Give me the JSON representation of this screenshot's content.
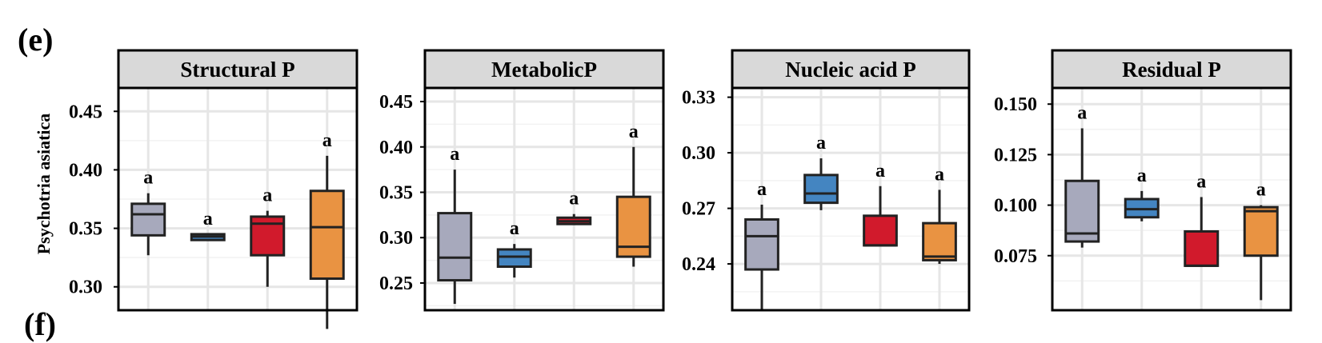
{
  "labels": {
    "top": "(e)",
    "bottom": "(f)"
  },
  "ylabel": "Psychotria asiatica",
  "colors": [
    "#A7A9BC",
    "#4485C1",
    "#D11A2C",
    "#E99342"
  ],
  "chart_data": [
    {
      "type": "box",
      "title": "Structural P",
      "ylim": [
        0.28,
        0.47
      ],
      "yticks": [
        "0.30",
        "0.35",
        "0.40",
        "0.45"
      ],
      "tick_values": [
        0.3,
        0.35,
        0.4,
        0.45
      ],
      "boxes": [
        {
          "whisker_low": 0.327,
          "q1": 0.344,
          "median": 0.362,
          "q3": 0.371,
          "whisker_high": 0.38,
          "letter": "a"
        },
        {
          "whisker_low": 0.34,
          "q1": 0.34,
          "median": 0.343,
          "q3": 0.345,
          "whisker_high": 0.345,
          "letter": "a"
        },
        {
          "whisker_low": 0.3,
          "q1": 0.327,
          "median": 0.354,
          "q3": 0.36,
          "whisker_high": 0.365,
          "letter": "a"
        },
        {
          "whisker_low": 0.264,
          "q1": 0.307,
          "median": 0.351,
          "q3": 0.382,
          "whisker_high": 0.412,
          "letter": "a"
        }
      ]
    },
    {
      "type": "box",
      "title": "MetabolicP",
      "ylim": [
        0.22,
        0.465
      ],
      "yticks": [
        "0.25",
        "0.30",
        "0.35",
        "0.40",
        "0.45"
      ],
      "tick_values": [
        0.25,
        0.3,
        0.35,
        0.4,
        0.45
      ],
      "boxes": [
        {
          "whisker_low": 0.227,
          "q1": 0.253,
          "median": 0.278,
          "q3": 0.327,
          "whisker_high": 0.375,
          "letter": "a"
        },
        {
          "whisker_low": 0.256,
          "q1": 0.268,
          "median": 0.279,
          "q3": 0.287,
          "whisker_high": 0.293,
          "letter": "a"
        },
        {
          "whisker_low": 0.315,
          "q1": 0.315,
          "median": 0.318,
          "q3": 0.322,
          "whisker_high": 0.326,
          "letter": "a"
        },
        {
          "whisker_low": 0.268,
          "q1": 0.279,
          "median": 0.29,
          "q3": 0.345,
          "whisker_high": 0.4,
          "letter": "a"
        }
      ]
    },
    {
      "type": "box",
      "title": "Nucleic acid P",
      "ylim": [
        0.215,
        0.335
      ],
      "yticks": [
        "0.24",
        "0.27",
        "0.30",
        "0.33"
      ],
      "tick_values": [
        0.24,
        0.27,
        0.3,
        0.33
      ],
      "boxes": [
        {
          "whisker_low": 0.215,
          "q1": 0.237,
          "median": 0.255,
          "q3": 0.264,
          "whisker_high": 0.272,
          "letter": "a"
        },
        {
          "whisker_low": 0.269,
          "q1": 0.273,
          "median": 0.278,
          "q3": 0.288,
          "whisker_high": 0.297,
          "letter": "a"
        },
        {
          "whisker_low": 0.25,
          "q1": 0.25,
          "median": 0.25,
          "q3": 0.266,
          "whisker_high": 0.282,
          "letter": "a"
        },
        {
          "whisker_low": 0.24,
          "q1": 0.242,
          "median": 0.244,
          "q3": 0.262,
          "whisker_high": 0.28,
          "letter": "a"
        }
      ]
    },
    {
      "type": "box",
      "title": "Residual P",
      "ylim": [
        0.048,
        0.158
      ],
      "yticks": [
        "0.075",
        "0.100",
        "0.125",
        "0.150"
      ],
      "tick_values": [
        0.075,
        0.1,
        0.125,
        0.15
      ],
      "boxes": [
        {
          "whisker_low": 0.079,
          "q1": 0.082,
          "median": 0.086,
          "q3": 0.112,
          "whisker_high": 0.138,
          "letter": "a"
        },
        {
          "whisker_low": 0.092,
          "q1": 0.094,
          "median": 0.098,
          "q3": 0.103,
          "whisker_high": 0.107,
          "letter": "a"
        },
        {
          "whisker_low": 0.07,
          "q1": 0.07,
          "median": 0.07,
          "q3": 0.087,
          "whisker_high": 0.104,
          "letter": "a"
        },
        {
          "whisker_low": 0.053,
          "q1": 0.075,
          "median": 0.097,
          "q3": 0.099,
          "whisker_high": 0.1,
          "letter": "a"
        }
      ]
    }
  ]
}
